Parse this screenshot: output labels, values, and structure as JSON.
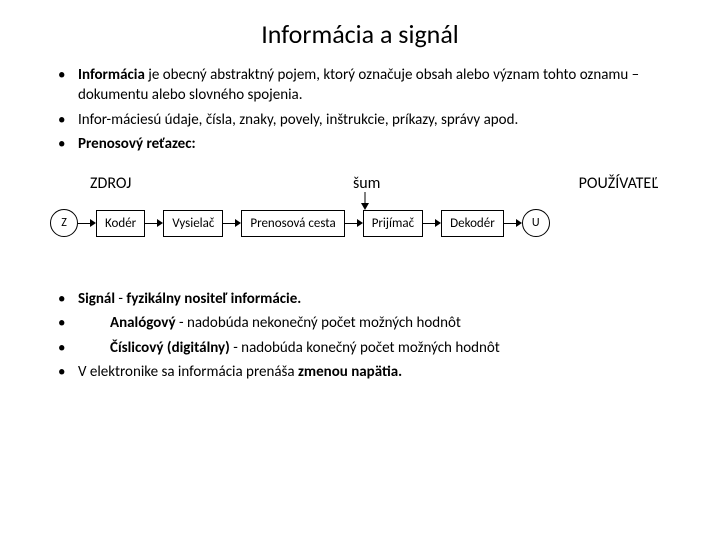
{
  "title": "Informácia a signál",
  "bullets_top": [
    {
      "html": "<span class='bold'>Informácia</span> je obecný abstraktný pojem, ktorý označuje obsah alebo význam tohto oznamu – dokumentu alebo slovného spojenia."
    },
    {
      "html": "Infor-máciesú údaje, čísla, znaky, povely, inštrukcie, príkazy, správy apod."
    },
    {
      "html": "<span class='bold'>Prenosový reťazec:</span>"
    }
  ],
  "diagram": {
    "label_left": "ZDROJ",
    "label_mid": "šum",
    "label_right": "POUŽÍVATEĽ",
    "circ_left": "Z",
    "circ_right": "U",
    "boxes": [
      "Kodér",
      "Vysielač",
      "Prenosová cesta",
      "Prijímač",
      "Dekodér"
    ],
    "colors": {
      "border": "#000000",
      "bg": "#ffffff",
      "text": "#000000"
    }
  },
  "bullets_bottom": [
    {
      "html": "<span class='bold'>Signál</span> - <span class='bold'>fyzikálny nositeľ informácie.</span>",
      "indent": false
    },
    {
      "html": "<span class='bold'>Analógový</span> - nadobúda nekonečný počet možných hodnôt",
      "indent": true
    },
    {
      "html": "<span class='bold'>Číslicový (digitálny)</span> - nadobúda konečný počet možných hodnôt",
      "indent": true
    },
    {
      "html": "V elektronike sa informácia prenáša <span class='bold'>zmenou napätia.</span>",
      "indent": false
    }
  ]
}
